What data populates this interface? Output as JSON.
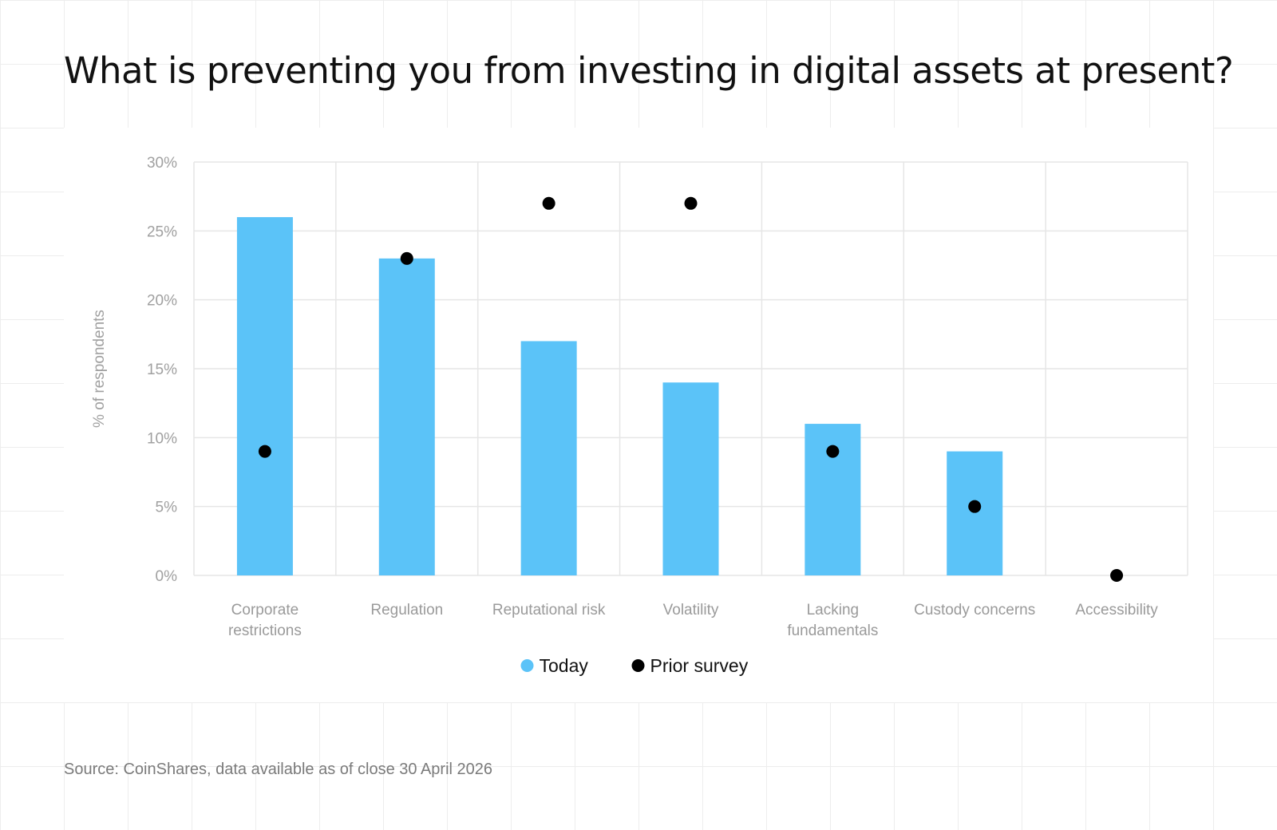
{
  "title": "What is preventing you from investing in digital assets at present?",
  "source": "Source: CoinShares, data available as of close 30 April 2026",
  "colors": {
    "today": "#5bc3f8",
    "prior": "#000000",
    "grid": "#e6e6e6",
    "axis_text": "#a0a0a0",
    "category_text": "#9a9a9a",
    "legend_text": "#111111"
  },
  "chart_data": {
    "type": "bar",
    "categories": [
      [
        "Corporate",
        "restrictions"
      ],
      [
        "Regulation"
      ],
      [
        "Reputational risk"
      ],
      [
        "Volatility"
      ],
      [
        "Lacking",
        "fundamentals"
      ],
      [
        "Custody concerns"
      ],
      [
        "Accessibility"
      ]
    ],
    "series": [
      {
        "name": "Today",
        "type": "bar",
        "values": [
          26,
          23,
          17,
          14,
          11,
          9,
          0
        ]
      },
      {
        "name": "Prior survey",
        "type": "scatter",
        "values": [
          9,
          23,
          27,
          27,
          9,
          5,
          0
        ]
      }
    ],
    "ylabel": "% of respondents",
    "ylim": [
      0,
      30
    ],
    "yticks": [
      0,
      5,
      10,
      15,
      20,
      25,
      30
    ],
    "ytick_labels": [
      "0%",
      "5%",
      "10%",
      "15%",
      "20%",
      "25%",
      "30%"
    ],
    "grid": true,
    "legend_position": "bottom-center"
  }
}
